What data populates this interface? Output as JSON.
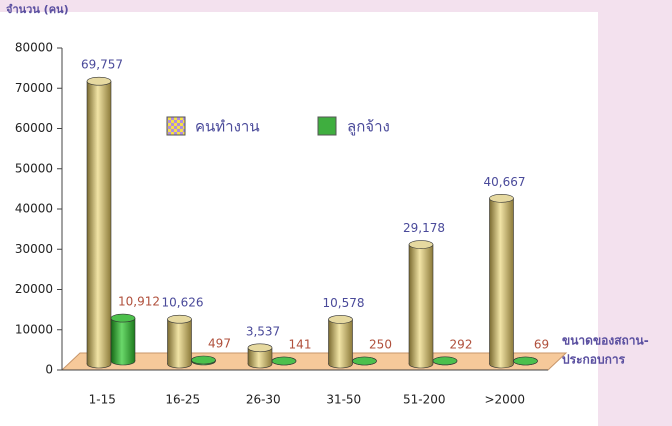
{
  "chart_data": {
    "type": "bar3d",
    "ylabel": "จำนวน (คน)",
    "xlabel": [
      "ขนาดของสถาน-",
      "ประกอบการ"
    ],
    "categories": [
      "1-15",
      "16-25",
      "26-30",
      "31-50",
      "51-200",
      ">2000"
    ],
    "series": [
      {
        "name": "คนทำงาน",
        "color": "#d8c77a",
        "label_color": "#4a4a9a",
        "values": [
          69757,
          10626,
          3537,
          10578,
          29178,
          40667
        ],
        "value_labels": [
          "69,757",
          "10,626",
          "3,537",
          "10,578",
          "29,178",
          "40,667"
        ]
      },
      {
        "name": "ลูกจ้าง",
        "color": "#3fae3f",
        "label_color": "#b0503c",
        "values": [
          10912,
          497,
          141,
          250,
          292,
          69
        ],
        "value_labels": [
          "10,912",
          "497",
          "141",
          "250",
          "292",
          "69"
        ]
      }
    ],
    "ylim": [
      0,
      80000
    ],
    "yticks": [
      0,
      10000,
      20000,
      30000,
      40000,
      50000,
      60000,
      70000,
      80000
    ]
  }
}
